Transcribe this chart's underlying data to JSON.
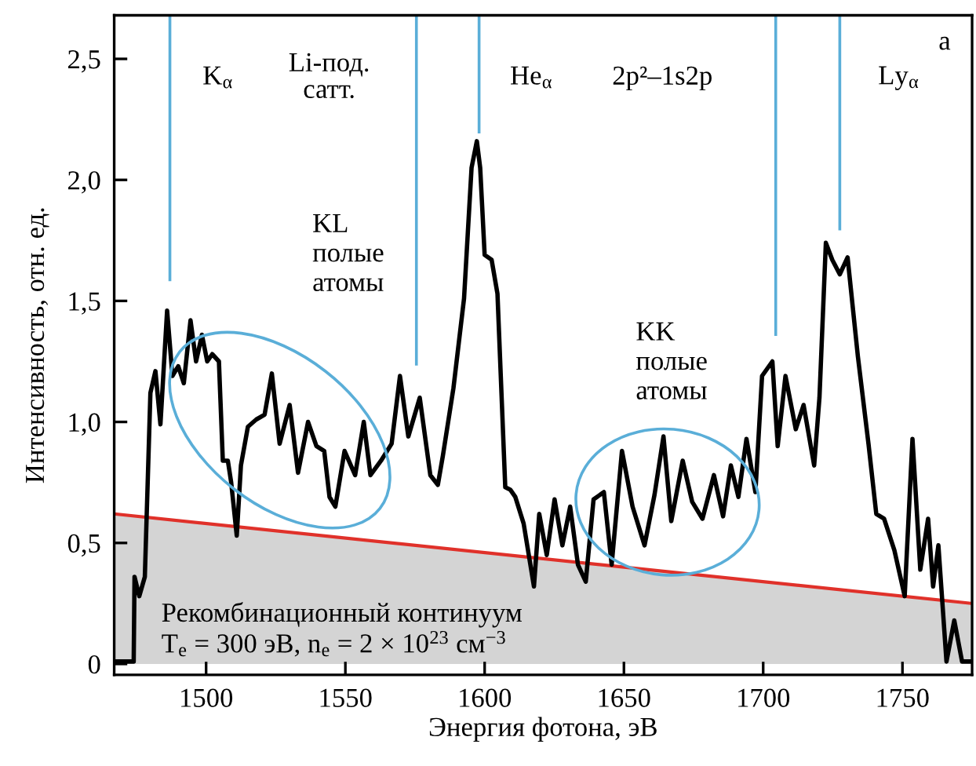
{
  "chart_data": {
    "type": "line",
    "xlabel": "Энергия фотона, эВ",
    "ylabel": "Интенсивность, отн. ед.",
    "xlim": [
      1467,
      1775
    ],
    "ylim": [
      -0.045,
      2.68
    ],
    "xticks": [
      1500,
      1550,
      1600,
      1650,
      1700,
      1750
    ],
    "yticks": [
      0,
      {
        "value": 0.5,
        "label": "0,5"
      },
      {
        "value": 1.0,
        "label": "1,0"
      },
      {
        "value": 1.5,
        "label": "1,5"
      },
      {
        "value": 2.0,
        "label": "2,0"
      },
      {
        "value": 2.5,
        "label": "2,5"
      }
    ],
    "grid": false,
    "ref_lines": [
      {
        "axis": "x",
        "value": 1487,
        "label": "K$_{α}$"
      },
      {
        "axis": "x",
        "value": 1575.5,
        "label": "Li-под.\nсатт."
      },
      {
        "axis": "x",
        "value": 1598,
        "label": "He$_{α}$"
      },
      {
        "axis": "x",
        "value": 1704.5,
        "label": "2p²–1s2p"
      },
      {
        "axis": "x",
        "value": 1727.5,
        "label": "Ly$_{α}$"
      }
    ],
    "series": [
      {
        "type": "area",
        "color": "#e0312a",
        "x": [
          1467,
          1775
        ],
        "values": [
          0.62,
          0.25
        ]
      },
      {
        "type": "line",
        "color": "#000000",
        "x": [
          1467.6,
          1474,
          1474.3,
          1476,
          1478,
          1480,
          1481.8,
          1483.6,
          1486,
          1487.9,
          1490,
          1492,
          1494.4,
          1496.4,
          1498.5,
          1500.4,
          1502.2,
          1504.6,
          1506,
          1507.8,
          1509,
          1511,
          1512.5,
          1515,
          1518,
          1521,
          1523.6,
          1526.4,
          1530,
          1533,
          1536.6,
          1539.6,
          1542.4,
          1544.3,
          1546.4,
          1549.7,
          1553.5,
          1556.6,
          1559,
          1562.8,
          1566.6,
          1569.6,
          1572.6,
          1576.7,
          1580.5,
          1583.2,
          1585,
          1588.8,
          1592.6,
          1595.3,
          1597.2,
          1598.4,
          1600,
          1602.5,
          1604.6,
          1607.4,
          1609.2,
          1611,
          1614,
          1617.7,
          1619.6,
          1622.3,
          1625.1,
          1627.9,
          1630.7,
          1633.5,
          1636.3,
          1639.1,
          1642.8,
          1645.6,
          1649.3,
          1653.1,
          1657.4,
          1661,
          1664.2,
          1667,
          1671.1,
          1674.5,
          1678.2,
          1682.3,
          1685.6,
          1688.4,
          1691.1,
          1694,
          1697.2,
          1699.6,
          1703.3,
          1705.2,
          1708,
          1711.7,
          1714.5,
          1718.3,
          1720.2,
          1722.5,
          1724.8,
          1727.5,
          1730.3,
          1734,
          1737.8,
          1740.6,
          1743.4,
          1747.1,
          1750.8,
          1753.6,
          1756.4,
          1759.2,
          1761,
          1762.9,
          1765.8,
          1768.6,
          1771.4,
          1774
        ],
        "values": [
          0.01,
          0.01,
          0.36,
          0.28,
          0.36,
          1.12,
          1.21,
          0.99,
          1.46,
          1.19,
          1.23,
          1.16,
          1.42,
          1.25,
          1.36,
          1.25,
          1.28,
          1.25,
          0.84,
          0.84,
          0.75,
          0.53,
          0.82,
          0.98,
          1.01,
          1.03,
          1.2,
          0.91,
          1.07,
          0.79,
          1.0,
          0.9,
          0.88,
          0.69,
          0.65,
          0.88,
          0.78,
          1.0,
          0.78,
          0.84,
          0.91,
          1.19,
          0.94,
          1.1,
          0.78,
          0.74,
          0.86,
          1.14,
          1.51,
          2.05,
          2.16,
          2.05,
          1.69,
          1.67,
          1.53,
          0.73,
          0.72,
          0.69,
          0.58,
          0.32,
          0.62,
          0.45,
          0.68,
          0.49,
          0.65,
          0.41,
          0.34,
          0.68,
          0.71,
          0.41,
          0.88,
          0.65,
          0.49,
          0.7,
          0.94,
          0.59,
          0.84,
          0.67,
          0.6,
          0.78,
          0.61,
          0.82,
          0.69,
          0.93,
          0.71,
          1.19,
          1.25,
          0.9,
          1.19,
          0.97,
          1.07,
          0.82,
          1.1,
          1.74,
          1.67,
          1.61,
          1.68,
          1.27,
          0.91,
          0.62,
          0.6,
          0.47,
          0.28,
          0.93,
          0.39,
          0.6,
          0.32,
          0.49,
          0.01,
          0.18,
          0.01,
          0.01
        ]
      }
    ],
    "annotations": [
      "KL\nполые\nатомы",
      "KK\nполые\nатомы",
      "a",
      "Рекомбинационный континуум\nT$_{e}$ = 300 эВ, n$_{e}$ = 2 × 10$^{23}$ см$^{−3}$"
    ]
  }
}
